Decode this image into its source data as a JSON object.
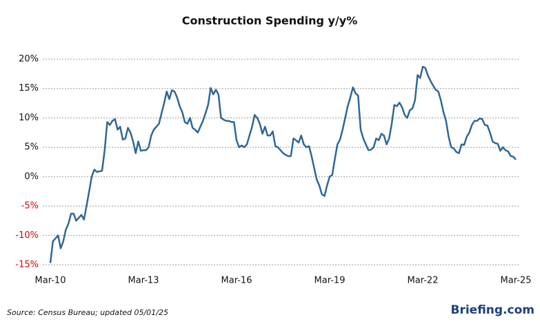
{
  "chart_data": {
    "type": "line",
    "title": "Construction Spending y/y%",
    "categories": [
      "Mar-10",
      null,
      null,
      null,
      null,
      null,
      null,
      null,
      null,
      null,
      null,
      null,
      null,
      null,
      null,
      null,
      null,
      null,
      null,
      null,
      null,
      null,
      null,
      null,
      null,
      null,
      null,
      null,
      null,
      null,
      null,
      null,
      null,
      null,
      null,
      null,
      "Mar-13",
      null,
      null,
      null,
      null,
      null,
      null,
      null,
      null,
      null,
      null,
      null,
      null,
      null,
      null,
      null,
      null,
      null,
      null,
      null,
      null,
      null,
      null,
      null,
      null,
      null,
      null,
      null,
      null,
      null,
      null,
      null,
      null,
      null,
      null,
      null,
      "Mar-16",
      null,
      null,
      null,
      null,
      null,
      null,
      null,
      null,
      null,
      null,
      null,
      null,
      null,
      null,
      null,
      null,
      null,
      null,
      null,
      null,
      null,
      null,
      null,
      null,
      null,
      null,
      null,
      null,
      null,
      null,
      null,
      null,
      null,
      null,
      null,
      "Mar-19",
      null,
      null,
      null,
      null,
      null,
      null,
      null,
      null,
      null,
      null,
      null,
      null,
      null,
      null,
      null,
      null,
      null,
      null,
      null,
      null,
      null,
      null,
      null,
      null,
      null,
      null,
      null,
      null,
      null,
      null,
      null,
      null,
      null,
      null,
      null,
      "Mar-22",
      null,
      null,
      null,
      null,
      null,
      null,
      null,
      null,
      null,
      null,
      null,
      null,
      null,
      null,
      null,
      null,
      null,
      null,
      null,
      null,
      null,
      null,
      null,
      null,
      null,
      null,
      null,
      null,
      null,
      null,
      null,
      null,
      null,
      null,
      null,
      "Mar-25"
    ],
    "series": [
      {
        "name": "Construction Spending y/y%",
        "color": "#2f6796",
        "values": [
          -14.7,
          -11,
          -10.5,
          -10,
          -12.2,
          -11,
          -9,
          -8,
          -6.3,
          -6.3,
          -7.5,
          -7,
          -6.5,
          -7.3,
          -5,
          -2.5,
          0,
          1.2,
          0.8,
          0.9,
          1,
          4.5,
          9.3,
          8.8,
          9.5,
          9.8,
          8,
          8.5,
          6.3,
          6.5,
          8.3,
          7.5,
          6,
          4,
          6,
          4.4,
          4.5,
          4.5,
          5,
          7,
          8,
          8.5,
          9,
          10.8,
          12.5,
          14.5,
          13.2,
          14.7,
          14.5,
          13.5,
          12,
          11,
          9.3,
          9,
          10,
          8.3,
          8,
          7.5,
          8.5,
          9.5,
          10.8,
          12.2,
          15.1,
          14,
          14.8,
          14,
          10,
          9.7,
          9.5,
          9.5,
          9.3,
          9.3,
          6.2,
          5,
          5.3,
          5,
          5.5,
          7,
          8.5,
          10.5,
          10,
          9,
          7.3,
          8.5,
          7,
          7,
          7.7,
          5.2,
          5,
          4.5,
          4,
          3.7,
          3.5,
          3.5,
          6.5,
          6.2,
          5.8,
          7,
          5.5,
          5,
          5.2,
          3.5,
          1.5,
          -0.5,
          -1.5,
          -3,
          -3.3,
          -1.5,
          0,
          0.3,
          3,
          5.5,
          6.3,
          8,
          10,
          12,
          13.5,
          15.2,
          14.2,
          13.8,
          8,
          6.5,
          5.5,
          4.5,
          4.6,
          5,
          6.5,
          6.2,
          7.3,
          7,
          5.5,
          6.5,
          9,
          12.2,
          12,
          12.6,
          11.8,
          10.5,
          10,
          11.3,
          11.6,
          13,
          17.3,
          16.8,
          18.7,
          18.5,
          17.2,
          16.3,
          15.5,
          14.8,
          14.5,
          13,
          11,
          9.5,
          6.8,
          5,
          4.8,
          4.2,
          4,
          5.5,
          5.4,
          6.8,
          7.5,
          8.8,
          9.5,
          9.5,
          9.9,
          9.8,
          8.8,
          8.7,
          7.5,
          6,
          5.7,
          5.6,
          4.4,
          5,
          4.5,
          4.3,
          3.5,
          3.4,
          2.9
        ]
      }
    ],
    "ylim": [
      -15,
      20
    ],
    "yticks": [
      {
        "value": -15,
        "label": "-15%"
      },
      {
        "value": -10,
        "label": "-10%"
      },
      {
        "value": -5,
        "label": "-5%"
      },
      {
        "value": 0,
        "label": "0%"
      },
      {
        "value": 5,
        "label": "5%"
      },
      {
        "value": 10,
        "label": "10%"
      },
      {
        "value": 15,
        "label": "15%"
      },
      {
        "value": 20,
        "label": "20%"
      }
    ],
    "grid": true,
    "negative_tick_color": "#e00000",
    "source": "Source:  Census Bureau;  updated  05/01/25",
    "brand": "Briefing.com"
  }
}
